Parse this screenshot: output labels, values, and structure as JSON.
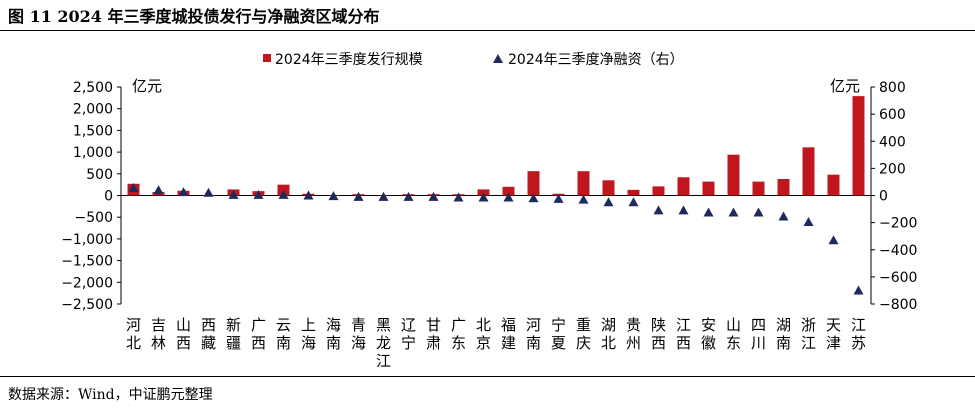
{
  "header": {
    "title": "图 11    2024 年三季度城投债发行与净融资区域分布"
  },
  "footer": {
    "source": "数据来源：Wind，中证鹏元整理"
  },
  "chart_data": {
    "type": "bar",
    "title": "图 11    2024 年三季度城投债发行与净融资区域分布",
    "categories": [
      "河北",
      "吉林",
      "山西",
      "西藏",
      "新疆",
      "广西",
      "云南",
      "上海",
      "海南",
      "青海",
      "黑龙江",
      "辽宁",
      "甘肃",
      "广东",
      "北京",
      "福建",
      "河南",
      "宁夏",
      "重庆",
      "湖北",
      "贵州",
      "陕西",
      "江西",
      "安徽",
      "山东",
      "四川",
      "湖南",
      "浙江",
      "天津",
      "江苏"
    ],
    "series": [
      {
        "name": "2024年三季度发行规模",
        "kind": "bar",
        "axis": "left",
        "color": "#c0171f",
        "values": [
          270,
          80,
          110,
          10,
          140,
          100,
          250,
          40,
          10,
          30,
          10,
          30,
          30,
          30,
          140,
          200,
          560,
          40,
          560,
          350,
          130,
          210,
          420,
          320,
          940,
          320,
          380,
          1110,
          480,
          2290
        ]
      },
      {
        "name": "2024年三季度净融资（右）",
        "kind": "scatter",
        "axis": "right",
        "marker": "triangle",
        "color": "#1f2a5c",
        "values": [
          55,
          40,
          25,
          20,
          5,
          5,
          5,
          0,
          -5,
          -10,
          -10,
          -10,
          -10,
          -15,
          -15,
          -15,
          -20,
          -25,
          -30,
          -50,
          -50,
          -110,
          -110,
          -125,
          -125,
          -125,
          -155,
          -195,
          -330,
          -700
        ]
      }
    ],
    "left_axis": {
      "unit": "亿元",
      "ylim": [
        -2500,
        2500
      ],
      "ticks": [
        2500,
        2000,
        1500,
        1000,
        500,
        0,
        -500,
        -1000,
        -1500,
        -2000,
        -2500
      ],
      "tick_labels": [
        "2,500",
        "2,000",
        "1,500",
        "1,000",
        "500",
        "0",
        "−500",
        "−1,000",
        "−1,500",
        "−2,000",
        "−2,500"
      ]
    },
    "right_axis": {
      "unit": "亿元",
      "ylim": [
        -800,
        800
      ],
      "ticks": [
        800,
        600,
        400,
        200,
        0,
        -200,
        -400,
        -600,
        -800
      ],
      "tick_labels": [
        "800",
        "600",
        "400",
        "200",
        "0",
        "−200",
        "−400",
        "−600",
        "−800"
      ]
    },
    "legend_position": "top-center",
    "grid": false
  }
}
